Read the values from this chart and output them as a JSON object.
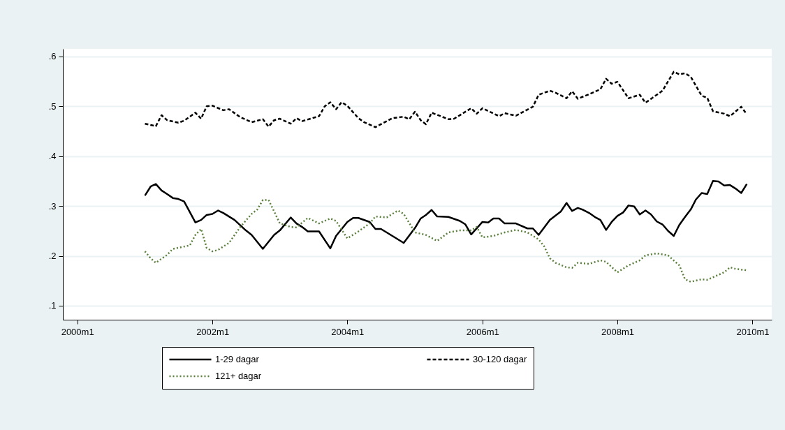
{
  "chart_data": {
    "type": "line",
    "legend": "bottom",
    "grid": "y",
    "xlim": [
      "1999-10-15",
      "2010-04-15"
    ],
    "xticks": [
      {
        "value": "2000-01",
        "label": "2000m1"
      },
      {
        "value": "2002-01",
        "label": "2002m1"
      },
      {
        "value": "2004-01",
        "label": "2004m1"
      },
      {
        "value": "2006-01",
        "label": "2006m1"
      },
      {
        "value": "2008-01",
        "label": "2008m1"
      },
      {
        "value": "2010-01",
        "label": "2010m1"
      }
    ],
    "ylim": [
      0.072,
      0.615
    ],
    "yticks": [
      {
        "value": 0.1,
        "label": ".1"
      },
      {
        "value": 0.2,
        "label": ".2"
      },
      {
        "value": 0.3,
        "label": ".3"
      },
      {
        "value": 0.4,
        "label": ".4"
      },
      {
        "value": 0.5,
        "label": ".5"
      },
      {
        "value": 0.6,
        "label": ".6"
      }
    ],
    "series": [
      {
        "name": "1-29 dagar",
        "color": "#000000",
        "line_style": "solid",
        "x": [
          "2001-01",
          "2001-02",
          "2001-03",
          "2001-04",
          "2001-05",
          "2001-06",
          "2001-07",
          "2001-08",
          "2001-10",
          "2001-11",
          "2001-12",
          "2002-01",
          "2002-02",
          "2002-03",
          "2002-05",
          "2002-07",
          "2002-08",
          "2002-10",
          "2002-12",
          "2003-01",
          "2003-03",
          "2003-04",
          "2003-05",
          "2003-06",
          "2003-08",
          "2003-10",
          "2003-11",
          "2004-01",
          "2004-02",
          "2004-03",
          "2004-05",
          "2004-06",
          "2004-07",
          "2004-08",
          "2004-11",
          "2005-01",
          "2005-02",
          "2005-03",
          "2005-04",
          "2005-05",
          "2005-07",
          "2005-09",
          "2005-10",
          "2005-11",
          "2006-01",
          "2006-02",
          "2006-03",
          "2006-04",
          "2006-05",
          "2006-07",
          "2006-09",
          "2006-10",
          "2006-11",
          "2007-01",
          "2007-03",
          "2007-04",
          "2007-05",
          "2007-06",
          "2007-07",
          "2007-08",
          "2007-09",
          "2007-10",
          "2007-11",
          "2007-12",
          "2008-01",
          "2008-02",
          "2008-03",
          "2008-04",
          "2008-05",
          "2008-06",
          "2008-07",
          "2008-08",
          "2008-09",
          "2008-10",
          "2008-11",
          "2008-12",
          "2009-01",
          "2009-02",
          "2009-03",
          "2009-04",
          "2009-05",
          "2009-06",
          "2009-07",
          "2009-08",
          "2009-09",
          "2009-10",
          "2009-11",
          "2009-12"
        ],
        "values": [
          0.321,
          0.339,
          0.344,
          0.331,
          0.324,
          0.316,
          0.314,
          0.309,
          0.267,
          0.272,
          0.282,
          0.284,
          0.291,
          0.286,
          0.272,
          0.251,
          0.242,
          0.214,
          0.242,
          0.251,
          0.277,
          0.265,
          0.258,
          0.249,
          0.249,
          0.215,
          0.24,
          0.268,
          0.276,
          0.276,
          0.268,
          0.254,
          0.254,
          0.247,
          0.226,
          0.256,
          0.275,
          0.282,
          0.292,
          0.279,
          0.278,
          0.27,
          0.263,
          0.243,
          0.268,
          0.267,
          0.275,
          0.275,
          0.265,
          0.265,
          0.255,
          0.255,
          0.242,
          0.272,
          0.289,
          0.306,
          0.29,
          0.296,
          0.292,
          0.286,
          0.278,
          0.272,
          0.252,
          0.268,
          0.28,
          0.287,
          0.301,
          0.299,
          0.283,
          0.291,
          0.283,
          0.269,
          0.263,
          0.25,
          0.24,
          0.262,
          0.278,
          0.293,
          0.313,
          0.326,
          0.324,
          0.35,
          0.349,
          0.341,
          0.342,
          0.335,
          0.326,
          0.344
        ]
      },
      {
        "name": "30-120 dagar",
        "color": "#000000",
        "line_style": "dashed",
        "x": [
          "2001-01",
          "2001-03",
          "2001-04",
          "2001-05",
          "2001-07",
          "2001-08",
          "2001-10",
          "2001-11",
          "2001-12",
          "2002-01",
          "2002-03",
          "2002-04",
          "2002-06",
          "2002-08",
          "2002-10",
          "2002-11",
          "2002-12",
          "2003-01",
          "2003-03",
          "2003-04",
          "2003-05",
          "2003-08",
          "2003-09",
          "2003-10",
          "2003-11",
          "2003-12",
          "2004-01",
          "2004-03",
          "2004-04",
          "2004-06",
          "2004-07",
          "2004-09",
          "2004-11",
          "2004-12",
          "2005-01",
          "2005-02",
          "2005-03",
          "2005-04",
          "2005-07",
          "2005-08",
          "2005-11",
          "2005-12",
          "2006-01",
          "2006-04",
          "2006-05",
          "2006-07",
          "2006-10",
          "2006-11",
          "2007-01",
          "2007-02",
          "2007-04",
          "2007-05",
          "2007-06",
          "2007-08",
          "2007-10",
          "2007-11",
          "2007-12",
          "2008-01",
          "2008-03",
          "2008-05",
          "2008-06",
          "2008-09",
          "2008-11",
          "2008-12",
          "2009-01",
          "2009-02",
          "2009-04",
          "2009-05",
          "2009-06",
          "2009-08",
          "2009-09",
          "2009-11",
          "2009-12"
        ],
        "values": [
          0.465,
          0.46,
          0.482,
          0.472,
          0.467,
          0.471,
          0.487,
          0.475,
          0.5,
          0.501,
          0.492,
          0.494,
          0.478,
          0.468,
          0.474,
          0.459,
          0.472,
          0.475,
          0.465,
          0.476,
          0.47,
          0.48,
          0.5,
          0.508,
          0.494,
          0.508,
          0.501,
          0.476,
          0.468,
          0.458,
          0.464,
          0.476,
          0.479,
          0.474,
          0.489,
          0.472,
          0.464,
          0.487,
          0.474,
          0.475,
          0.496,
          0.485,
          0.496,
          0.48,
          0.486,
          0.481,
          0.499,
          0.523,
          0.531,
          0.527,
          0.516,
          0.53,
          0.515,
          0.524,
          0.534,
          0.555,
          0.545,
          0.549,
          0.516,
          0.523,
          0.507,
          0.531,
          0.569,
          0.564,
          0.566,
          0.559,
          0.521,
          0.517,
          0.49,
          0.485,
          0.48,
          0.499,
          0.484
        ]
      },
      {
        "name": "121+ dagar",
        "color": "#5b7f3c",
        "line_style": "dotted",
        "x": [
          "2001-01",
          "2001-02",
          "2001-03",
          "2001-05",
          "2001-06",
          "2001-09",
          "2001-10",
          "2001-11",
          "2001-12",
          "2002-01",
          "2002-02",
          "2002-04",
          "2002-06",
          "2002-08",
          "2002-09",
          "2002-10",
          "2002-11",
          "2002-12",
          "2003-01",
          "2003-03",
          "2003-04",
          "2003-06",
          "2003-08",
          "2003-10",
          "2003-11",
          "2004-01",
          "2004-03",
          "2004-05",
          "2004-06",
          "2004-08",
          "2004-10",
          "2004-11",
          "2005-01",
          "2005-03",
          "2005-05",
          "2005-07",
          "2005-09",
          "2005-11",
          "2005-12",
          "2006-01",
          "2006-03",
          "2006-05",
          "2006-07",
          "2006-09",
          "2006-11",
          "2006-12",
          "2007-01",
          "2007-02",
          "2007-04",
          "2007-05",
          "2007-06",
          "2007-08",
          "2007-10",
          "2007-11",
          "2008-01",
          "2008-03",
          "2008-05",
          "2008-06",
          "2008-08",
          "2008-10",
          "2008-12",
          "2009-01",
          "2009-02",
          "2009-04",
          "2009-05",
          "2009-08",
          "2009-09",
          "2009-10",
          "2009-12"
        ],
        "values": [
          0.209,
          0.195,
          0.186,
          0.202,
          0.214,
          0.221,
          0.242,
          0.254,
          0.216,
          0.209,
          0.212,
          0.226,
          0.258,
          0.284,
          0.293,
          0.312,
          0.312,
          0.289,
          0.265,
          0.258,
          0.257,
          0.276,
          0.265,
          0.275,
          0.27,
          0.235,
          0.249,
          0.265,
          0.279,
          0.277,
          0.291,
          0.284,
          0.247,
          0.242,
          0.23,
          0.247,
          0.251,
          0.251,
          0.258,
          0.237,
          0.24,
          0.247,
          0.252,
          0.247,
          0.233,
          0.219,
          0.195,
          0.186,
          0.177,
          0.176,
          0.186,
          0.184,
          0.191,
          0.188,
          0.167,
          0.181,
          0.191,
          0.201,
          0.205,
          0.201,
          0.181,
          0.153,
          0.148,
          0.153,
          0.152,
          0.167,
          0.177,
          0.174,
          0.171
        ]
      }
    ]
  }
}
